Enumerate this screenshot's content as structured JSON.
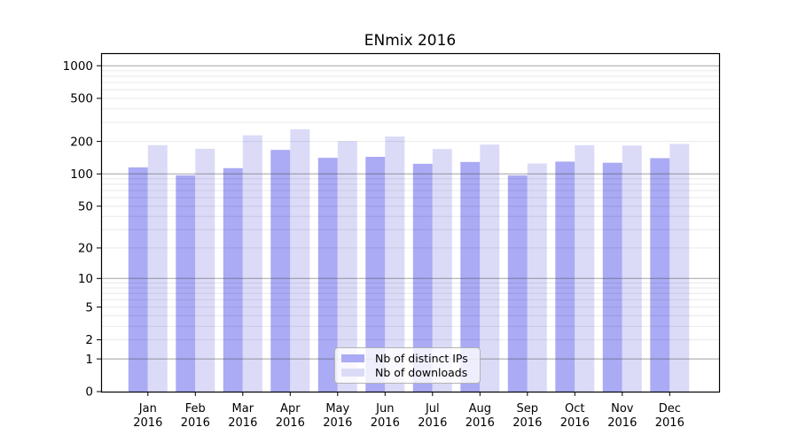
{
  "chart_data": {
    "type": "bar",
    "title": "ENmix 2016",
    "categories": [
      "Jan",
      "Feb",
      "Mar",
      "Apr",
      "May",
      "Jun",
      "Jul",
      "Aug",
      "Sep",
      "Oct",
      "Nov",
      "Dec"
    ],
    "x_year_label": "2016",
    "series": [
      {
        "name": "Nb of distinct IPs",
        "color": "#aaaaf5",
        "values": [
          115,
          97,
          113,
          167,
          141,
          144,
          124,
          129,
          97,
          130,
          127,
          140
        ]
      },
      {
        "name": "Nb of downloads",
        "color": "#dbdbf8",
        "values": [
          185,
          171,
          228,
          259,
          201,
          222,
          170,
          187,
          125,
          185,
          183,
          190
        ]
      }
    ],
    "yscale": "log10(1+y)",
    "y_ticks": [
      0,
      1,
      2,
      5,
      10,
      20,
      50,
      100,
      200,
      500,
      1000
    ],
    "ylim": [
      0,
      1305
    ],
    "xlabel": "",
    "ylabel": "",
    "grid": true,
    "grid_major_at": [
      1,
      10,
      100,
      1000
    ],
    "legend_position": "inside-bottom-center",
    "colors": {
      "major_grid": "#a1a1a1",
      "minor_grid": "#e8e8e8",
      "axis": "#000000",
      "background": "#ffffff"
    }
  }
}
